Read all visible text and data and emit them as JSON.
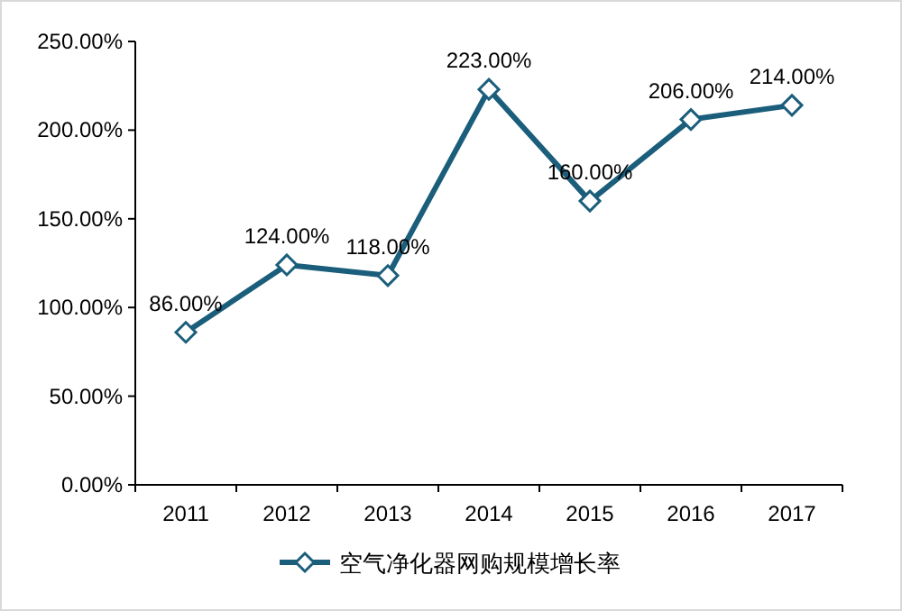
{
  "chart_data": {
    "type": "line",
    "categories": [
      "2011",
      "2012",
      "2013",
      "2014",
      "2015",
      "2016",
      "2017"
    ],
    "series": [
      {
        "name": "空气净化器网购规模增长率",
        "color": "#1b5e7b",
        "values": [
          86,
          124,
          118,
          223,
          160,
          206,
          214
        ],
        "value_labels": [
          "86.00%",
          "124.00%",
          "118.00%",
          "223.00%",
          "160.00%",
          "206.00%",
          "214.00%"
        ]
      }
    ],
    "ylim": [
      0,
      250
    ],
    "yticks": [
      {
        "value": 0,
        "label": "0.00%"
      },
      {
        "value": 50,
        "label": "50.00%"
      },
      {
        "value": 100,
        "label": "100.00%"
      },
      {
        "value": 150,
        "label": "150.00%"
      },
      {
        "value": 200,
        "label": "200.00%"
      },
      {
        "value": 250,
        "label": "250.00%"
      }
    ],
    "grid": false,
    "legend": "bottom",
    "marker": "diamond",
    "line_style": "solid"
  }
}
